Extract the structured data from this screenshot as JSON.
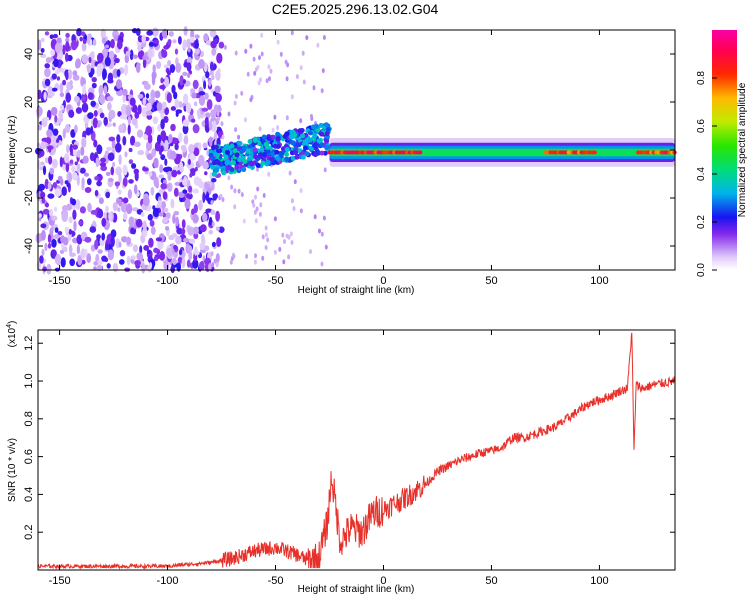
{
  "title": "C2E5.2025.296.13.02.G04",
  "chart_data": [
    {
      "type": "heatmap",
      "name": "spectrogram",
      "xlabel": "Height of straight line (km)",
      "ylabel": "Frequency (Hz)",
      "xlim": [
        -160,
        135
      ],
      "ylim": [
        -50,
        50
      ],
      "xticks": [
        -150,
        -100,
        -50,
        0,
        50,
        100
      ],
      "yticks": [
        -40,
        -20,
        0,
        20,
        40
      ],
      "colorbar": {
        "label": "Normalized spectral amplitude",
        "range": [
          0,
          1
        ],
        "ticks": [
          0.0,
          0.2,
          0.4,
          0.6,
          0.8
        ],
        "tick_labels": [
          "0.0",
          "0.2",
          "0.4",
          "0.6",
          "0.8"
        ]
      },
      "features": [
        {
          "description": "broadband noise region",
          "x_range": [
            -160,
            -80
          ],
          "freq_range": [
            -50,
            50
          ],
          "amplitude": 0.2
        },
        {
          "description": "transition region",
          "x_range": [
            -80,
            -25
          ],
          "center_freq_start": -5,
          "center_freq_end": 5,
          "amplitude": 0.35
        },
        {
          "description": "narrow carrier line",
          "x_range": [
            -25,
            135
          ],
          "center_freq": -1,
          "amplitude": 0.6
        },
        {
          "description": "peak amplitude segment",
          "x_range": [
            -25,
            18
          ],
          "center_freq": -1,
          "amplitude": 0.95
        },
        {
          "description": "peak amplitude segment",
          "x_range": [
            75,
            98
          ],
          "center_freq": -1,
          "amplitude": 0.9
        },
        {
          "description": "peak amplitude segment",
          "x_range": [
            118,
            135
          ],
          "center_freq": -1,
          "amplitude": 0.9
        }
      ]
    },
    {
      "type": "line",
      "name": "snr",
      "xlabel": "Height of straight line (km)",
      "ylabel": "SNR (10 * v/v)",
      "y_scale_label": "(x10",
      "y_scale_exponent": "4",
      "xlim": [
        -160,
        135
      ],
      "ylim": [
        0,
        1.27
      ],
      "xticks": [
        -150,
        -100,
        -50,
        0,
        50,
        100
      ],
      "yticks": [
        0.2,
        0.4,
        0.6,
        0.8,
        1.0,
        1.2
      ],
      "ytick_labels": [
        "0.2",
        "0.4",
        "0.6",
        "0.8",
        "1.0",
        "1.2"
      ],
      "color": "#e8302a",
      "series": [
        {
          "name": "SNR",
          "x": [
            -160,
            -140,
            -120,
            -100,
            -90,
            -80,
            -70,
            -60,
            -50,
            -45,
            -40,
            -35,
            -30,
            -26,
            -24,
            -20,
            -15,
            -10,
            -5,
            0,
            5,
            10,
            15,
            20,
            25,
            30,
            35,
            40,
            45,
            50,
            55,
            60,
            65,
            70,
            75,
            80,
            85,
            90,
            95,
            100,
            105,
            110,
            113,
            115,
            116,
            117,
            120,
            125,
            130,
            135
          ],
          "values": [
            0.02,
            0.02,
            0.02,
            0.02,
            0.03,
            0.04,
            0.06,
            0.1,
            0.12,
            0.1,
            0.08,
            0.05,
            0.06,
            0.25,
            0.5,
            0.15,
            0.22,
            0.2,
            0.3,
            0.32,
            0.35,
            0.38,
            0.42,
            0.46,
            0.52,
            0.55,
            0.58,
            0.6,
            0.62,
            0.63,
            0.65,
            0.7,
            0.7,
            0.72,
            0.74,
            0.76,
            0.8,
            0.84,
            0.88,
            0.9,
            0.92,
            0.95,
            0.96,
            1.27,
            0.62,
            0.98,
            0.96,
            0.98,
            0.99,
            1.0
          ]
        }
      ]
    }
  ]
}
